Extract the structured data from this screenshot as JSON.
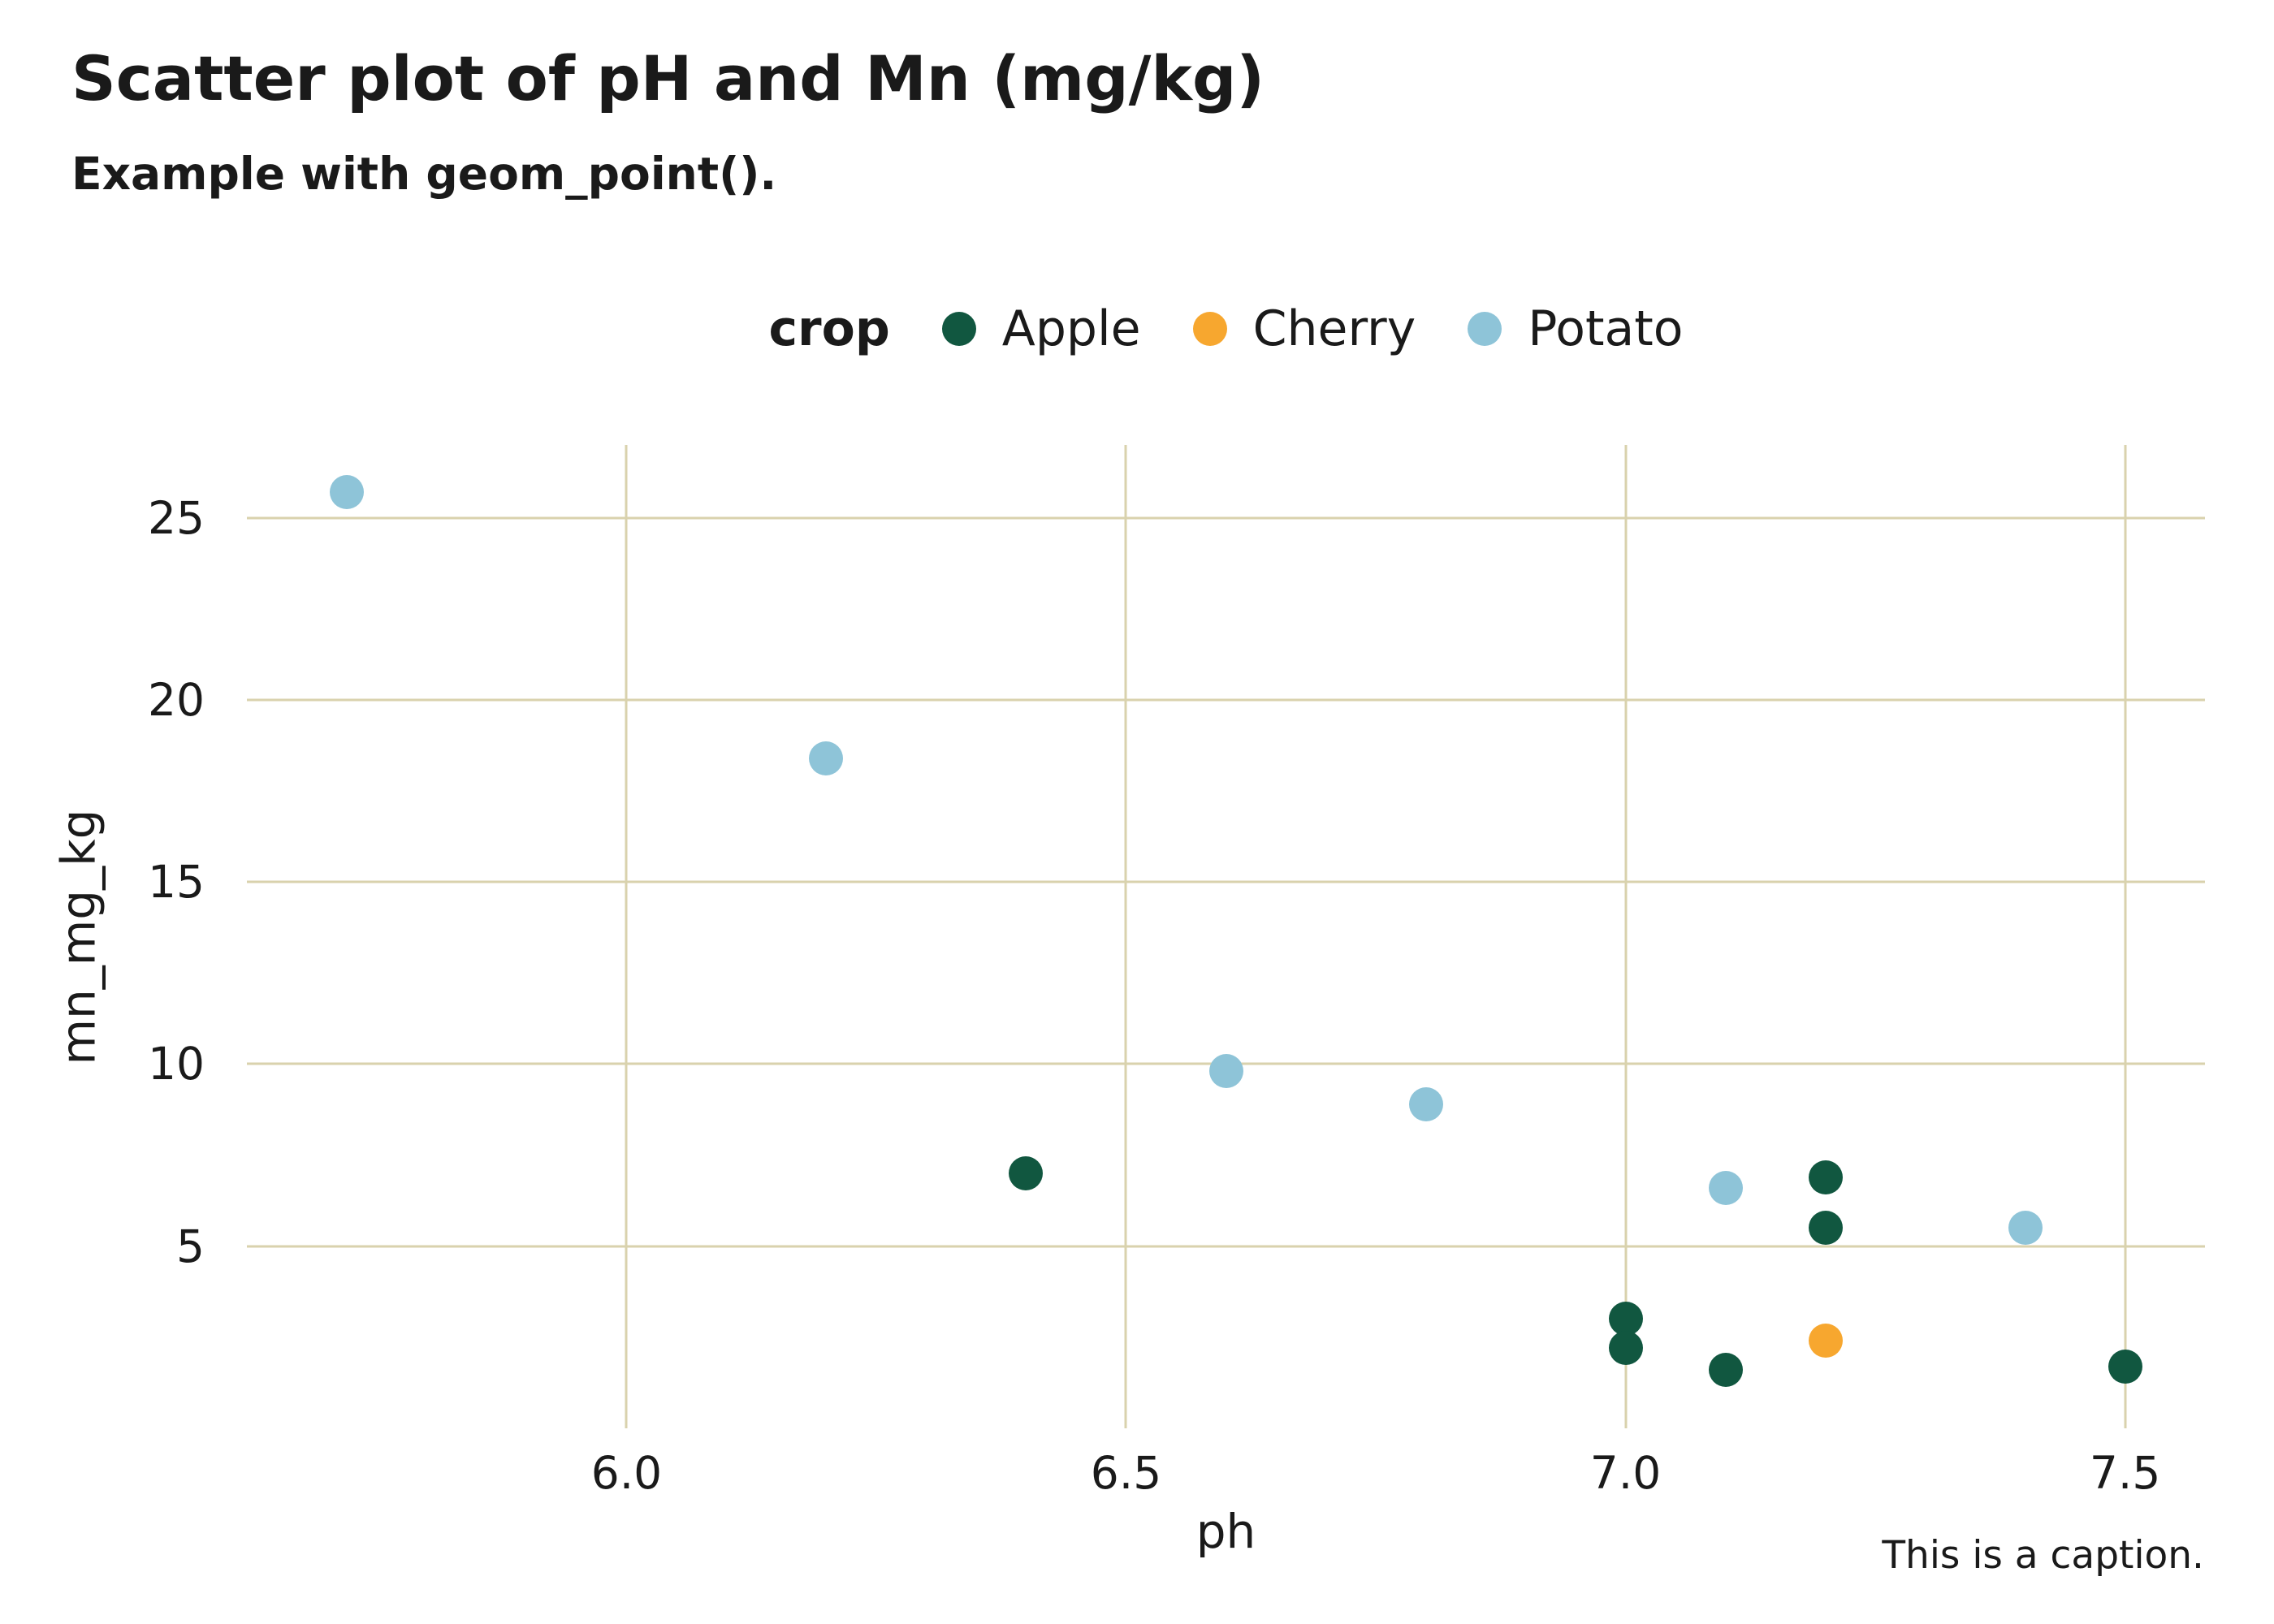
{
  "title": "Scatter plot of pH and Mn (mg/kg)",
  "subtitle": "Example with geom_point().",
  "caption": "This is a caption.",
  "legend": {
    "title": "crop",
    "items": [
      {
        "label": "Apple",
        "color": "#115740"
      },
      {
        "label": "Cherry",
        "color": "#F7A72F"
      },
      {
        "label": "Potato",
        "color": "#8EC4D8"
      }
    ]
  },
  "chart_data": {
    "type": "scatter",
    "title": "Scatter plot of pH and Mn (mg/kg)",
    "subtitle": "Example with geom_point().",
    "xlabel": "ph",
    "ylabel": "mn_mg_kg",
    "xlim": [
      5.62,
      7.58
    ],
    "ylim": [
      0,
      27
    ],
    "grid": true,
    "grid_color": "#D9D2AD",
    "legend_position": "top",
    "x_ticks": [
      {
        "value": 6.0,
        "label": "6.0"
      },
      {
        "value": 6.5,
        "label": "6.5"
      },
      {
        "value": 7.0,
        "label": "7.0"
      },
      {
        "value": 7.5,
        "label": "7.5"
      }
    ],
    "y_ticks": [
      {
        "value": 5,
        "label": "5"
      },
      {
        "value": 10,
        "label": "10"
      },
      {
        "value": 15,
        "label": "15"
      },
      {
        "value": 20,
        "label": "20"
      },
      {
        "value": 25,
        "label": "25"
      }
    ],
    "series": [
      {
        "name": "Apple",
        "color": "#115740",
        "points": [
          [
            6.4,
            7.0
          ],
          [
            7.2,
            6.9
          ],
          [
            7.2,
            5.5
          ],
          [
            7.0,
            3.0
          ],
          [
            7.0,
            2.2
          ],
          [
            7.1,
            1.6
          ],
          [
            7.5,
            1.7
          ]
        ]
      },
      {
        "name": "Cherry",
        "color": "#F7A72F",
        "points": [
          [
            7.2,
            2.4
          ]
        ]
      },
      {
        "name": "Potato",
        "color": "#8EC4D8",
        "points": [
          [
            5.72,
            25.7
          ],
          [
            6.2,
            18.4
          ],
          [
            6.6,
            9.8
          ],
          [
            6.8,
            8.9
          ],
          [
            7.1,
            6.6
          ],
          [
            7.4,
            5.5
          ]
        ]
      }
    ]
  }
}
